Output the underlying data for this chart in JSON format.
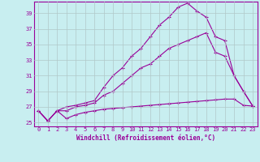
{
  "xlabel": "Windchill (Refroidissement éolien,°C)",
  "bg_color": "#c8eef0",
  "line_color": "#990099",
  "grid_color": "#b0c8c8",
  "xlim": [
    -0.5,
    23.5
  ],
  "ylim": [
    24.5,
    40.5
  ],
  "yticks": [
    25,
    27,
    29,
    31,
    33,
    35,
    37,
    39
  ],
  "xticks": [
    0,
    1,
    2,
    3,
    4,
    5,
    6,
    7,
    8,
    9,
    10,
    11,
    12,
    13,
    14,
    15,
    16,
    17,
    18,
    19,
    20,
    21,
    22,
    23
  ],
  "series1_x": [
    0,
    1,
    2,
    3,
    4,
    5,
    6,
    7,
    8,
    9,
    10,
    11,
    12,
    13,
    14,
    15,
    16,
    17,
    18,
    19,
    20,
    21,
    22,
    23
  ],
  "series1_y": [
    26.5,
    25.2,
    26.5,
    25.5,
    26.0,
    26.3,
    26.5,
    26.7,
    26.8,
    26.9,
    27.0,
    27.1,
    27.2,
    27.3,
    27.4,
    27.5,
    27.6,
    27.7,
    27.8,
    27.9,
    28.0,
    28.0,
    27.2,
    27.1
  ],
  "series2_x": [
    0,
    1,
    2,
    3,
    4,
    5,
    6,
    7,
    8,
    9,
    10,
    11,
    12,
    13,
    14,
    15,
    16,
    17,
    18,
    19,
    20,
    21,
    22,
    23
  ],
  "series2_y": [
    26.5,
    25.2,
    26.5,
    26.5,
    27.0,
    27.2,
    27.5,
    28.5,
    29.0,
    30.0,
    31.0,
    32.0,
    32.5,
    33.5,
    34.5,
    35.0,
    35.5,
    36.0,
    36.5,
    34.0,
    33.5,
    31.0,
    29.0,
    27.1
  ],
  "series3_x": [
    0,
    1,
    2,
    3,
    4,
    5,
    6,
    7,
    8,
    9,
    10,
    11,
    12,
    13,
    14,
    15,
    16,
    17,
    18,
    19,
    20,
    21,
    22,
    23
  ],
  "series3_y": [
    26.5,
    25.2,
    26.5,
    27.0,
    27.2,
    27.5,
    27.8,
    29.5,
    31.0,
    32.0,
    33.5,
    34.5,
    36.0,
    37.5,
    38.5,
    39.8,
    40.3,
    39.3,
    38.5,
    36.0,
    35.5,
    31.0,
    29.0,
    27.1
  ]
}
